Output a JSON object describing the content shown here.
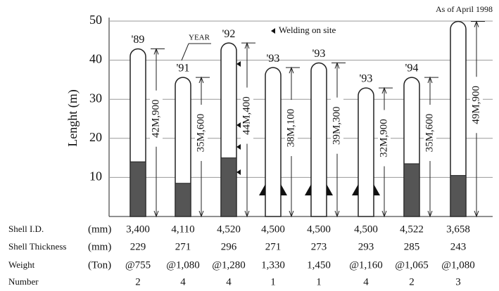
{
  "chart_data": {
    "type": "vessel",
    "note": "As of April 1998",
    "legend_text": "Welding on site",
    "year_annotation": "YEAR",
    "y_label": "Lenght (m)",
    "categories": [
      "'89",
      "'91",
      "'92",
      "'93",
      "'93",
      "'93",
      "'94",
      null
    ],
    "values": [
      42.9,
      35.6,
      44.4,
      38.1,
      39.3,
      32.9,
      35.6,
      49.9
    ],
    "value_labels": [
      "42M,900",
      "35M,600",
      "44M,400",
      "38M,100",
      "39M,300",
      "32M,900",
      "35M,600",
      "49M,900"
    ],
    "dark": [
      14,
      8.5,
      15,
      null,
      null,
      null,
      13.5,
      10.5
    ],
    "ylim": [
      0,
      50
    ],
    "yticks": [
      10,
      20,
      30,
      40,
      50
    ],
    "grid": true
  },
  "table": {
    "rows": [
      {
        "label": "Shell I.D.",
        "unit": "(mm)",
        "cells": [
          "3,400",
          "4,110",
          "4,520",
          "4,500",
          "4,500",
          "4,500",
          "4,522",
          "3,658"
        ]
      },
      {
        "label": "Shell Thickness",
        "unit": "(mm)",
        "cells": [
          229,
          271,
          296,
          271,
          273,
          293,
          285,
          243
        ]
      },
      {
        "label": "Weight",
        "unit": "(Ton)",
        "cells": [
          "@755",
          "@1,080",
          "@1,280",
          "1,330",
          "1,450",
          "@1,160",
          "@1,065",
          "@1,080"
        ]
      },
      {
        "label": "Number",
        "cells": [
          2,
          4,
          4,
          1,
          1,
          4,
          2,
          3
        ]
      }
    ]
  }
}
